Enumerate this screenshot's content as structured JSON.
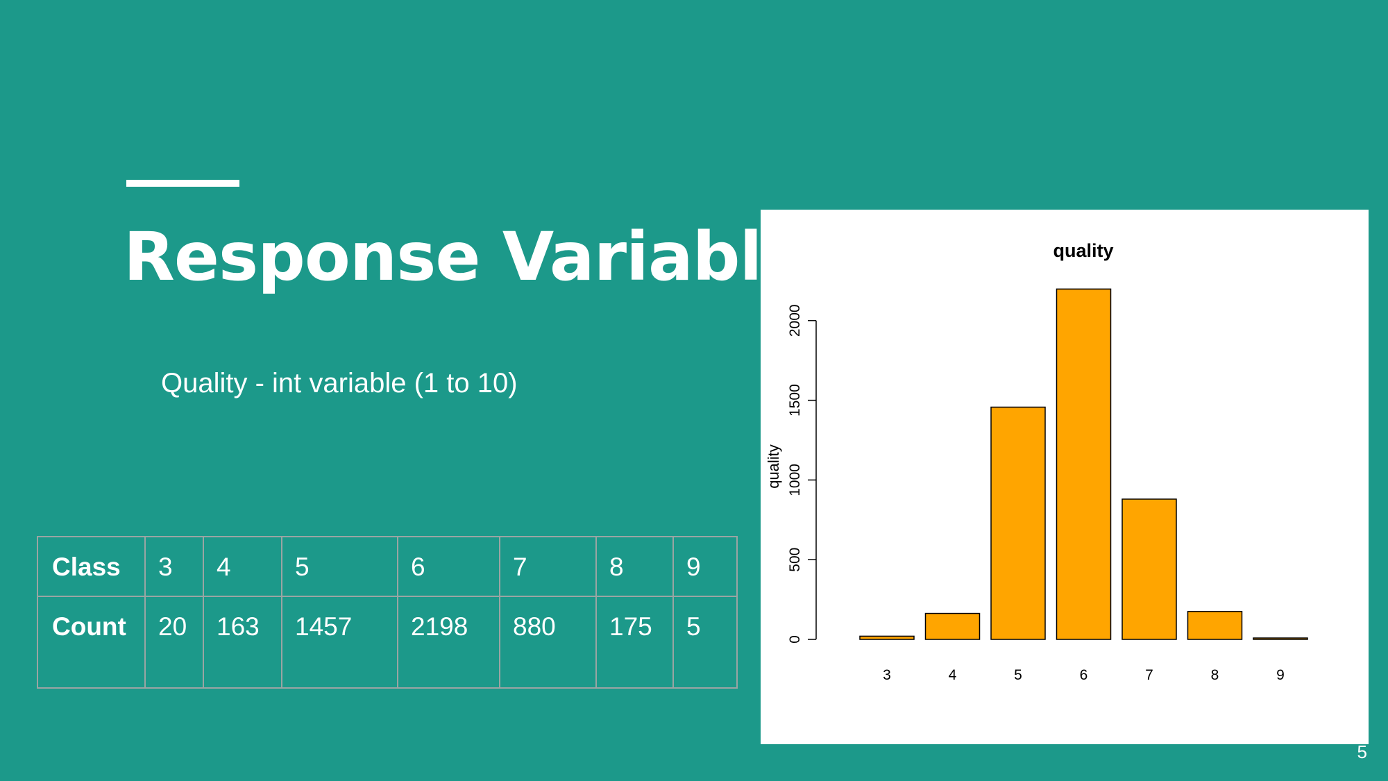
{
  "slide": {
    "title": "Response Variable",
    "subtitle": "Quality  - int variable (1 to 10)",
    "page_number": "5"
  },
  "table": {
    "row_headers": [
      "Class",
      "Count"
    ],
    "classes": [
      "3",
      "4",
      "5",
      "6",
      "7",
      "8",
      "9"
    ],
    "counts": [
      "20",
      "163",
      "1457",
      "2198",
      "880",
      "175",
      "5"
    ]
  },
  "chart_data": {
    "type": "bar",
    "title": "quality",
    "xlabel": "",
    "ylabel": "quality",
    "categories": [
      "3",
      "4",
      "5",
      "6",
      "7",
      "8",
      "9"
    ],
    "values": [
      20,
      163,
      1457,
      2198,
      880,
      175,
      5
    ],
    "ylim": [
      0,
      2000
    ],
    "yticks": [
      "0",
      "500",
      "1000",
      "1500",
      "2000"
    ],
    "bar_color": "#ffa500",
    "grid": false
  }
}
